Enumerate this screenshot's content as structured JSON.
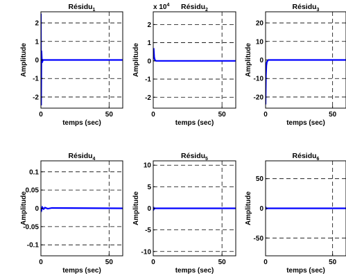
{
  "figure": {
    "colors": {
      "signal": "#0000ff",
      "axes": "#000000",
      "grid": "#000000",
      "background": "#ffffff"
    }
  },
  "chart_data": [
    {
      "type": "line",
      "title": "Résidu",
      "title_sub": "1",
      "xlabel": "temps (sec)",
      "ylabel": "Amplitude",
      "xlim": [
        0,
        60
      ],
      "ylim": [
        -2.6,
        2.6
      ],
      "xticks": [
        0,
        50
      ],
      "xtick_labels": [
        "0",
        "50"
      ],
      "yticks": [
        -2,
        -1,
        0,
        1,
        2
      ],
      "ytick_labels": [
        "-2",
        "-1",
        "0",
        "1",
        "2"
      ],
      "exponent_label": "",
      "grid": "dashed",
      "series": [
        {
          "points": [
            [
              0,
              2.5
            ],
            [
              0.15,
              -2.45
            ],
            [
              0.4,
              0.5
            ],
            [
              0.8,
              -0.15
            ],
            [
              1.5,
              0
            ],
            [
              60,
              0
            ]
          ]
        }
      ]
    },
    {
      "type": "line",
      "title": "Résidu",
      "title_sub": "2",
      "xlabel": "temps (sec)",
      "ylabel": "Amplitude",
      "xlim": [
        0,
        60
      ],
      "ylim": [
        -2.6,
        2.7
      ],
      "xticks": [
        0,
        50
      ],
      "xtick_labels": [
        "0",
        "50"
      ],
      "yticks": [
        -2,
        -1,
        0,
        1,
        2
      ],
      "ytick_labels": [
        "-2",
        "-1",
        "0",
        "1",
        "2"
      ],
      "exponent_label": "x 10",
      "exponent_power": "4",
      "grid": "dashed",
      "series": [
        {
          "points": [
            [
              0,
              0.1
            ],
            [
              0.3,
              0.7
            ],
            [
              0.7,
              0.2
            ],
            [
              1.2,
              0.05
            ],
            [
              2,
              0
            ],
            [
              60,
              0
            ]
          ]
        }
      ]
    },
    {
      "type": "line",
      "title": "Résidu",
      "title_sub": "3",
      "xlabel": "temps (sec)",
      "ylabel": "Amplitude",
      "xlim": [
        0,
        60
      ],
      "ylim": [
        -26,
        26
      ],
      "xticks": [
        0,
        50
      ],
      "xtick_labels": [
        "0",
        "50"
      ],
      "yticks": [
        -20,
        -10,
        0,
        10,
        20
      ],
      "ytick_labels": [
        "-20",
        "-10",
        "0",
        "10",
        "20"
      ],
      "exponent_label": "",
      "grid": "dashed",
      "series": [
        {
          "points": [
            [
              0,
              -24
            ],
            [
              0.3,
              -8
            ],
            [
              0.6,
              -3
            ],
            [
              1.0,
              -1
            ],
            [
              2,
              0
            ],
            [
              60,
              0
            ]
          ]
        }
      ]
    },
    {
      "type": "line",
      "title": "Résidu",
      "title_sub": "4",
      "xlabel": "temps (sec)",
      "ylabel": "Amplitude",
      "xlim": [
        0,
        60
      ],
      "ylim": [
        -0.13,
        0.13
      ],
      "xticks": [
        0,
        50
      ],
      "xtick_labels": [
        "0",
        "50"
      ],
      "yticks": [
        -0.1,
        -0.05,
        0,
        0.05,
        0.1
      ],
      "ytick_labels": [
        "-0.1",
        "-0.05",
        "0",
        "0.05",
        "0.1"
      ],
      "exponent_label": "",
      "grid": "dashed",
      "series": [
        {
          "points": [
            [
              0,
              0.002
            ],
            [
              0.5,
              -0.004
            ],
            [
              1,
              0.003
            ],
            [
              2,
              -0.002
            ],
            [
              3,
              0.002
            ],
            [
              5,
              -0.001
            ],
            [
              8,
              0.001
            ],
            [
              60,
              0
            ]
          ]
        }
      ]
    },
    {
      "type": "line",
      "title": "Résidu",
      "title_sub": "5",
      "xlabel": "temps (sec)",
      "ylabel": "Amplitude",
      "xlim": [
        0,
        60
      ],
      "ylim": [
        -11,
        11
      ],
      "xticks": [
        0,
        50
      ],
      "xtick_labels": [
        "0",
        "50"
      ],
      "yticks": [
        -10,
        -5,
        0,
        5,
        10
      ],
      "ytick_labels": [
        "-10",
        "-5",
        "0",
        "5",
        "10"
      ],
      "exponent_label": "",
      "grid": "dashed",
      "series": [
        {
          "points": [
            [
              0,
              0
            ],
            [
              0.2,
              0.3
            ],
            [
              0.5,
              -0.2
            ],
            [
              1,
              0
            ],
            [
              60,
              0
            ]
          ]
        }
      ]
    },
    {
      "type": "line",
      "title": "Résidu",
      "title_sub": "6",
      "xlabel": "temps (sec)",
      "ylabel": "Amplitude",
      "xlim": [
        0,
        60
      ],
      "ylim": [
        -80,
        80
      ],
      "xticks": [
        0,
        50
      ],
      "xtick_labels": [
        "0",
        "50"
      ],
      "yticks": [
        -50,
        0,
        50
      ],
      "ytick_labels": [
        "-50",
        "0",
        "50"
      ],
      "exponent_label": "",
      "grid": "dashed",
      "series": [
        {
          "points": [
            [
              0,
              -2
            ],
            [
              0.3,
              1
            ],
            [
              0.7,
              -0.5
            ],
            [
              1.2,
              0
            ],
            [
              60,
              0
            ]
          ]
        }
      ]
    }
  ]
}
